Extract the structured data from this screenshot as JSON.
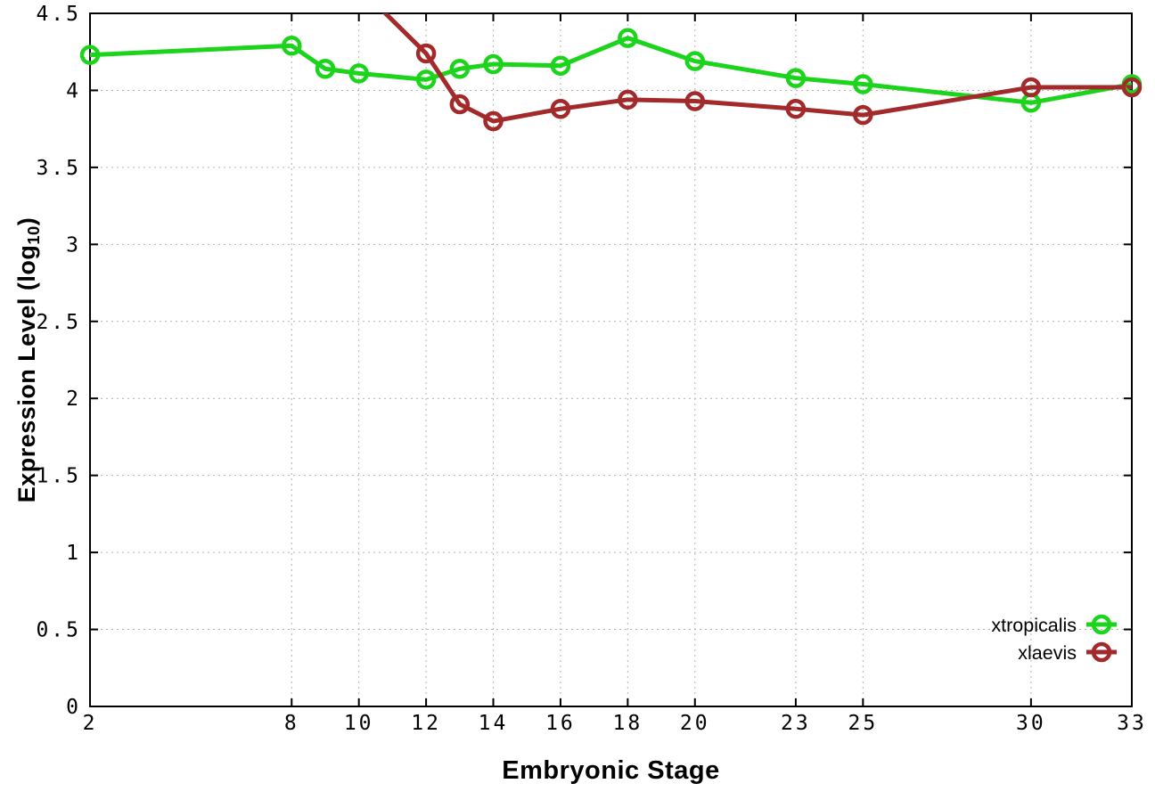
{
  "chart_data": {
    "type": "line",
    "title": "",
    "xlabel": "Embryonic Stage",
    "ylabel": "Expression Level (log10)",
    "ylabel_parts": {
      "pre": "Expression Level (log",
      "sub": "10",
      "post": ")"
    },
    "xlim": [
      2,
      33
    ],
    "ylim": [
      0,
      4.5
    ],
    "xticks": [
      2,
      8,
      10,
      12,
      14,
      16,
      18,
      20,
      23,
      25,
      30,
      33
    ],
    "xtick_labels": [
      "2",
      "8",
      "10",
      "12",
      "14",
      "16",
      "18",
      "20",
      "23",
      "25",
      "30",
      "33"
    ],
    "yticks": [
      0,
      0.5,
      1,
      1.5,
      2,
      2.5,
      3,
      3.5,
      4,
      4.5
    ],
    "ytick_labels": [
      "0",
      "0.5",
      "1",
      "1.5",
      "2",
      "2.5",
      "3",
      "3.5",
      "4",
      "4.5"
    ],
    "grid": true,
    "legend": {
      "position": "inside-bottom-right",
      "entries": [
        "xtropicalis",
        "xlaevis"
      ]
    },
    "series": [
      {
        "name": "xtropicalis",
        "color": "#1bd41b",
        "marker": "open-circle",
        "points": [
          [
            2,
            4.23
          ],
          [
            8,
            4.29
          ],
          [
            9,
            4.14
          ],
          [
            10,
            4.11
          ],
          [
            12,
            4.07
          ],
          [
            13,
            4.14
          ],
          [
            14,
            4.17
          ],
          [
            16,
            4.16
          ],
          [
            18,
            4.34
          ],
          [
            20,
            4.19
          ],
          [
            23,
            4.08
          ],
          [
            25,
            4.04
          ],
          [
            30,
            3.92
          ],
          [
            33,
            4.04
          ]
        ]
      },
      {
        "name": "xlaevis",
        "color": "#a32a2a",
        "marker": "open-circle",
        "points": [
          [
            10,
            4.67
          ],
          [
            12,
            4.24
          ],
          [
            13,
            3.91
          ],
          [
            14,
            3.8
          ],
          [
            16,
            3.88
          ],
          [
            18,
            3.94
          ],
          [
            20,
            3.93
          ],
          [
            23,
            3.88
          ],
          [
            25,
            3.84
          ],
          [
            30,
            4.02
          ],
          [
            33,
            4.02
          ]
        ],
        "note": "first segment enters plot from above the y-range and is clipped at y=4.5 between stages 10 and 12"
      }
    ]
  },
  "style": {
    "background": "#ffffff",
    "axis_color": "#000000",
    "grid_color": "#b4b4b4",
    "text_color": "#000000",
    "series_green": "#1bd41b",
    "series_brown": "#a32a2a"
  }
}
